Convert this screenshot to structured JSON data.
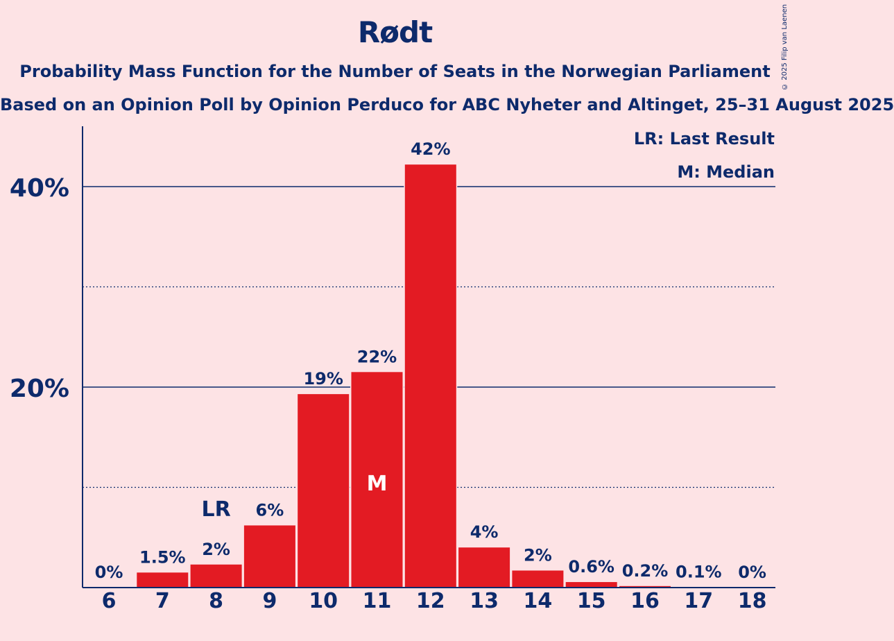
{
  "header": {
    "title": "Rødt",
    "subtitle": "Probability Mass Function for the Number of Seats in the Norwegian Parliament",
    "source": "Based on an Opinion Poll by Opinion Perduco for ABC Nyheter and Altinget, 25–31 August 2025",
    "copyright": "© 2025 Filip van Laenen"
  },
  "legend": {
    "last_result": "LR: Last Result",
    "median": "M: Median"
  },
  "colors": {
    "bar": "#e31b23",
    "text": "#0d2a6b",
    "background": "#fde3e5"
  },
  "chart_data": {
    "type": "bar",
    "categories": [
      "6",
      "7",
      "8",
      "9",
      "10",
      "11",
      "12",
      "13",
      "14",
      "15",
      "16",
      "17",
      "18"
    ],
    "values": [
      0,
      1.5,
      2.3,
      6.2,
      19.3,
      21.5,
      42.2,
      4.0,
      1.7,
      0.55,
      0.15,
      0.05,
      0
    ],
    "value_labels": [
      "0%",
      "1.5%",
      "2%",
      "6%",
      "19%",
      "22%",
      "42%",
      "4%",
      "2%",
      "0.6%",
      "0.2%",
      "0.1%",
      "0%"
    ],
    "y_ticks": [
      {
        "value": 20,
        "label": "20%"
      },
      {
        "value": 40,
        "label": "40%"
      }
    ],
    "minor_gridlines": [
      10,
      30
    ],
    "ylim": [
      0,
      46
    ],
    "last_result": {
      "category": "8",
      "label": "LR"
    },
    "median": {
      "category": "11",
      "label": "M"
    },
    "legend_position": "top-right"
  }
}
